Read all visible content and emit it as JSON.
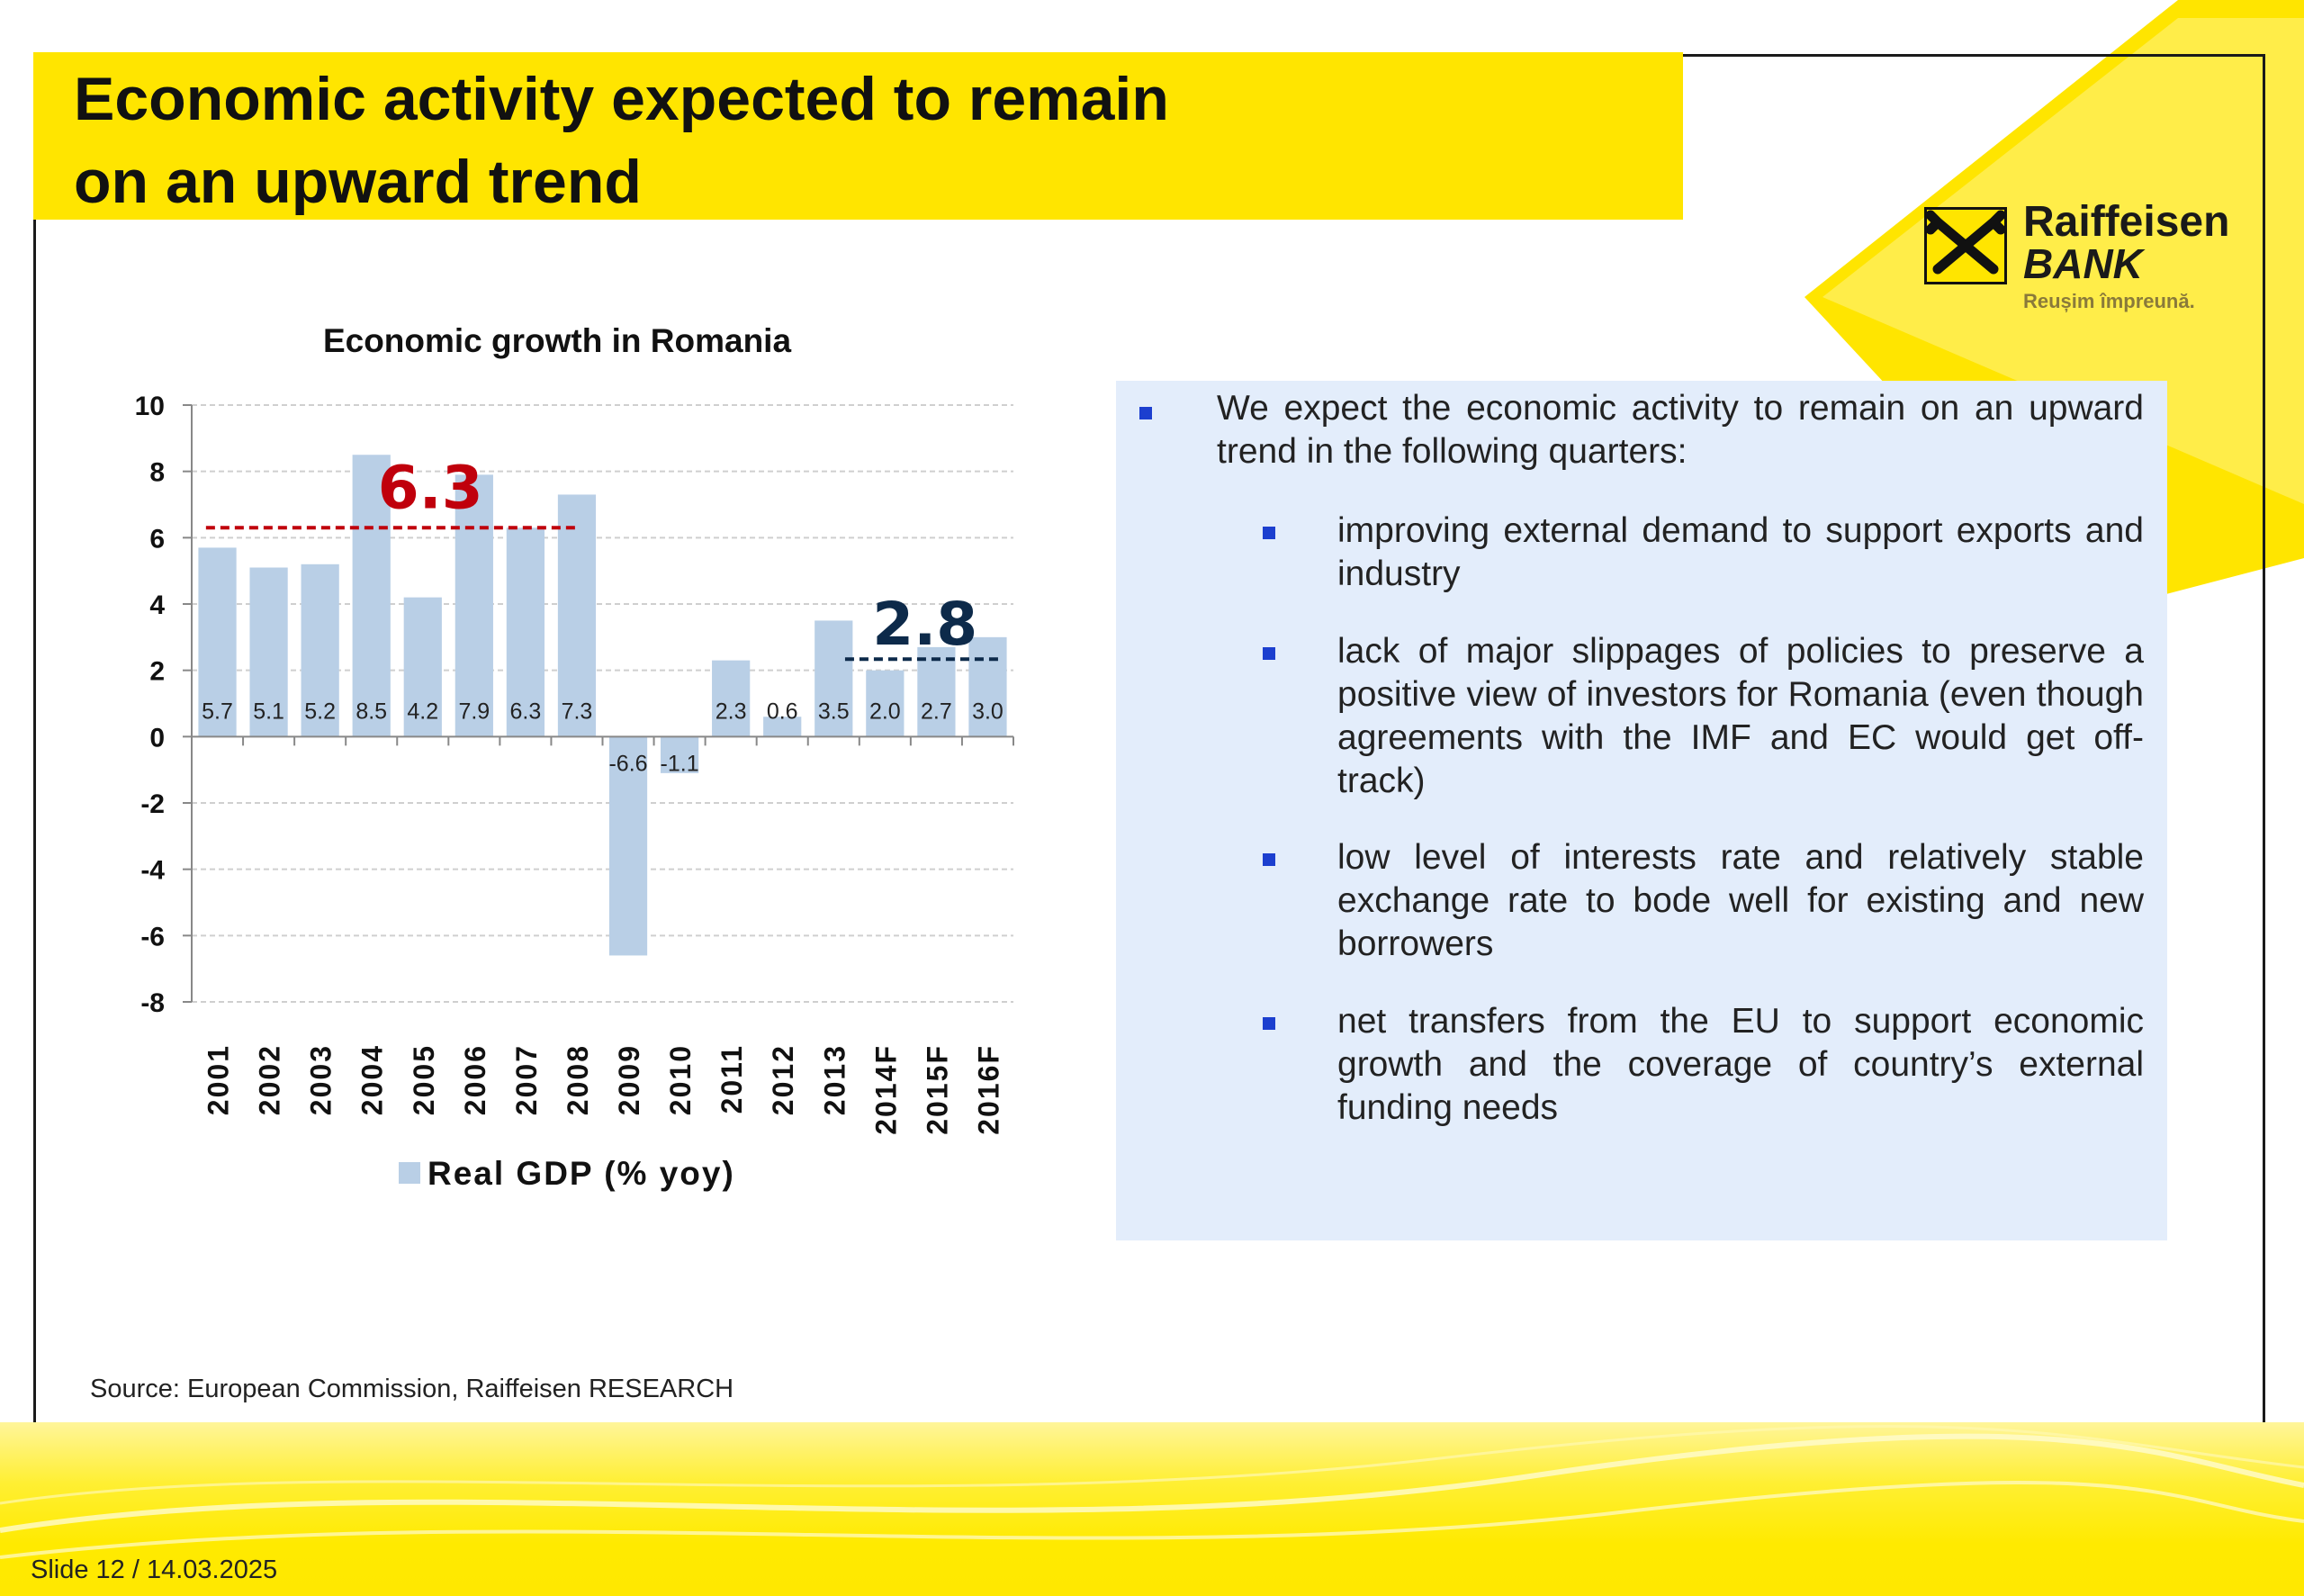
{
  "slide": {
    "title_line1": "Economic activity expected to remain",
    "title_line2": "on an upward trend",
    "source": "Source: European Commission, Raiffeisen RESEARCH",
    "slide_number": "Slide 12 / 14.03.2025"
  },
  "logo": {
    "name": "Raiffeisen",
    "bank": "BANK",
    "tagline": "Reușim împreună."
  },
  "colors": {
    "accent_yellow": "#ffe500",
    "bar": "#b9cfe6",
    "red_annotation": "#c0000c",
    "navy_annotation": "#0d2a4a",
    "bullet": "#1c3fcf",
    "text_box": "#e3edfb"
  },
  "bullets": {
    "main": "We expect the economic activity to remain on an upward trend in the following quarters:",
    "sub": [
      "improving external demand to support exports and industry",
      "lack of major slippages of policies to preserve a positive view of investors for Romania (even though agreements with the IMF and EC would get off-track)",
      "low level of interests rate and relatively stable exchange rate to bode well for existing and new borrowers",
      "net transfers from the EU to support economic growth and the coverage of country’s external funding needs"
    ]
  },
  "chart_data": {
    "type": "bar",
    "title": "Economic growth in Romania",
    "categories": [
      "2001",
      "2002",
      "2003",
      "2004",
      "2005",
      "2006",
      "2007",
      "2008",
      "2009",
      "2010",
      "2011",
      "2012",
      "2013",
      "2014F",
      "2015F",
      "2016F"
    ],
    "series": [
      {
        "name": "Real GDP (% yoy)",
        "values": [
          5.7,
          5.1,
          5.2,
          8.5,
          4.2,
          7.9,
          6.3,
          7.3,
          -6.6,
          -1.1,
          2.3,
          0.6,
          3.5,
          2.0,
          2.7,
          3.0
        ],
        "labels": [
          "5.7",
          "5.1",
          "5.2",
          "8.5",
          "4.2",
          "7.9",
          "6.3",
          "7.3",
          "-6.6",
          "-1.1",
          "2.3",
          "0.6",
          "3.5",
          "2.0",
          "2.7",
          "3.0"
        ]
      }
    ],
    "ylim": [
      -8,
      10
    ],
    "yticks": [
      "10",
      "8",
      "6",
      "4",
      "2",
      "0",
      "-2",
      "-4",
      "-6",
      "-8"
    ],
    "grid": true,
    "legend_position": "bottom",
    "annotations": [
      {
        "text": "6.3",
        "value": 6.3,
        "from": "2001",
        "to": "2008",
        "style": "dashed",
        "color": "red"
      },
      {
        "text": "2.8",
        "value": 2.8,
        "from": "2013",
        "to": "2016F",
        "style": "dashed",
        "color": "navy"
      }
    ]
  }
}
